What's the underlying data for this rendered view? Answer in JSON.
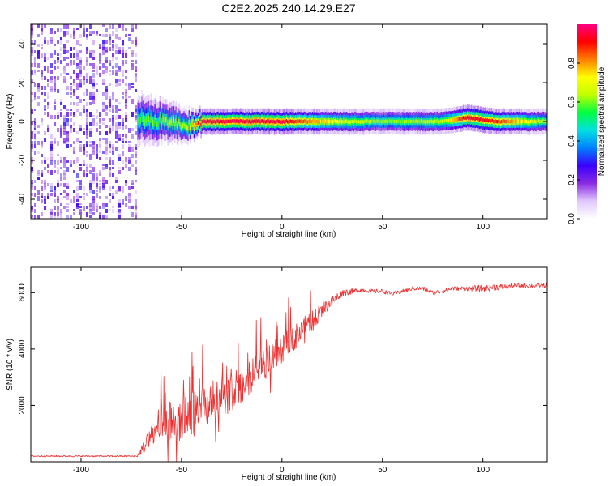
{
  "figure_title": "C2E2.2025.240.14.29.E27",
  "colors": {
    "snr_line": "#ee3030",
    "axis": "#000000",
    "background": "#ffffff",
    "colormap_stops": [
      "#ffffff",
      "#e0c8ff",
      "#8a2be2",
      "#3a00ff",
      "#0080ff",
      "#00e0e0",
      "#00ff40",
      "#c0ff00",
      "#ffff00",
      "#ff8000",
      "#ff0000",
      "#ff0080"
    ]
  },
  "chart_data": [
    {
      "type": "heatmap",
      "name": "spectrogram",
      "title": "",
      "xlabel": "Height of straight line (km)",
      "ylabel": "Frequency (Hz)",
      "xlim": [
        -125,
        132
      ],
      "ylim": [
        -50,
        50
      ],
      "x_ticks": [
        -100,
        -50,
        0,
        50,
        100
      ],
      "y_ticks": [
        -40,
        -20,
        0,
        20,
        40
      ],
      "colorbar": {
        "label": "Normalized spectral amplitude",
        "range": [
          0,
          1
        ],
        "ticks": [
          "0.0",
          "0.2",
          "0.4",
          "0.6",
          "0.8"
        ],
        "tick_values": [
          0.0,
          0.2,
          0.4,
          0.6,
          0.8
        ]
      },
      "features": {
        "noise_region_x": [
          -125,
          -72
        ],
        "noise_amplitude": 0.25,
        "signal_start_x": -72,
        "signal_center_hz": 0,
        "signal_trace": [
          {
            "x": -72,
            "hz": 2,
            "half_width_hz": 6,
            "amplitude": 0.55
          },
          {
            "x": -60,
            "hz": 0,
            "half_width_hz": 5,
            "amplitude": 0.6
          },
          {
            "x": -48,
            "hz": -2,
            "half_width_hz": 4,
            "amplitude": 0.65
          },
          {
            "x": -40,
            "hz": 0,
            "half_width_hz": 3,
            "amplitude": 0.95
          },
          {
            "x": -20,
            "hz": 0,
            "half_width_hz": 3,
            "amplitude": 0.95
          },
          {
            "x": 0,
            "hz": 0,
            "half_width_hz": 3,
            "amplitude": 0.95
          },
          {
            "x": 20,
            "hz": 0,
            "half_width_hz": 3,
            "amplitude": 0.75
          },
          {
            "x": 50,
            "hz": 0,
            "half_width_hz": 3,
            "amplitude": 0.6
          },
          {
            "x": 80,
            "hz": 0,
            "half_width_hz": 3,
            "amplitude": 0.65
          },
          {
            "x": 92,
            "hz": 2,
            "half_width_hz": 3,
            "amplitude": 0.95
          },
          {
            "x": 106,
            "hz": 0,
            "half_width_hz": 3,
            "amplitude": 0.9
          },
          {
            "x": 132,
            "hz": 0,
            "half_width_hz": 3,
            "amplitude": 0.6
          }
        ]
      }
    },
    {
      "type": "line",
      "name": "snr",
      "title": "",
      "xlabel": "Height of straight line (km)",
      "ylabel": "SNR (10 * v/v)",
      "xlim": [
        -125,
        132
      ],
      "ylim": [
        0,
        6900
      ],
      "x_ticks": [
        -100,
        -50,
        0,
        50,
        100
      ],
      "y_ticks": [
        2000,
        4000,
        6000
      ],
      "series": [
        {
          "name": "SNR",
          "x": [
            -125,
            -110,
            -100,
            -90,
            -80,
            -72,
            -70,
            -65,
            -60,
            -55,
            -50,
            -45,
            -40,
            -35,
            -30,
            -25,
            -20,
            -15,
            -10,
            -5,
            0,
            5,
            10,
            15,
            20,
            25,
            30,
            35,
            40,
            45,
            50,
            55,
            60,
            65,
            70,
            75,
            80,
            85,
            90,
            95,
            100,
            105,
            110,
            115,
            120,
            125,
            132
          ],
          "values": [
            200,
            200,
            200,
            200,
            200,
            200,
            400,
            900,
            1100,
            1300,
            1500,
            1700,
            1900,
            2100,
            2300,
            2500,
            2700,
            3000,
            3400,
            3700,
            4000,
            4300,
            4700,
            5000,
            5400,
            5700,
            6000,
            6050,
            6100,
            6050,
            6050,
            5950,
            6050,
            6150,
            6150,
            6000,
            6050,
            6150,
            6150,
            6150,
            6150,
            6200,
            6200,
            6250,
            6250,
            6250,
            6250
          ],
          "noise_amplitude": [
            50,
            50,
            50,
            50,
            50,
            50,
            300,
            800,
            1100,
            1300,
            1600,
            1600,
            1500,
            1500,
            1500,
            1400,
            1300,
            1300,
            1200,
            1100,
            1000,
            900,
            800,
            700,
            500,
            400,
            250,
            200,
            150,
            150,
            150,
            150,
            150,
            150,
            150,
            150,
            150,
            150,
            150,
            200,
            250,
            250,
            200,
            150,
            150,
            150,
            150
          ]
        }
      ]
    }
  ]
}
